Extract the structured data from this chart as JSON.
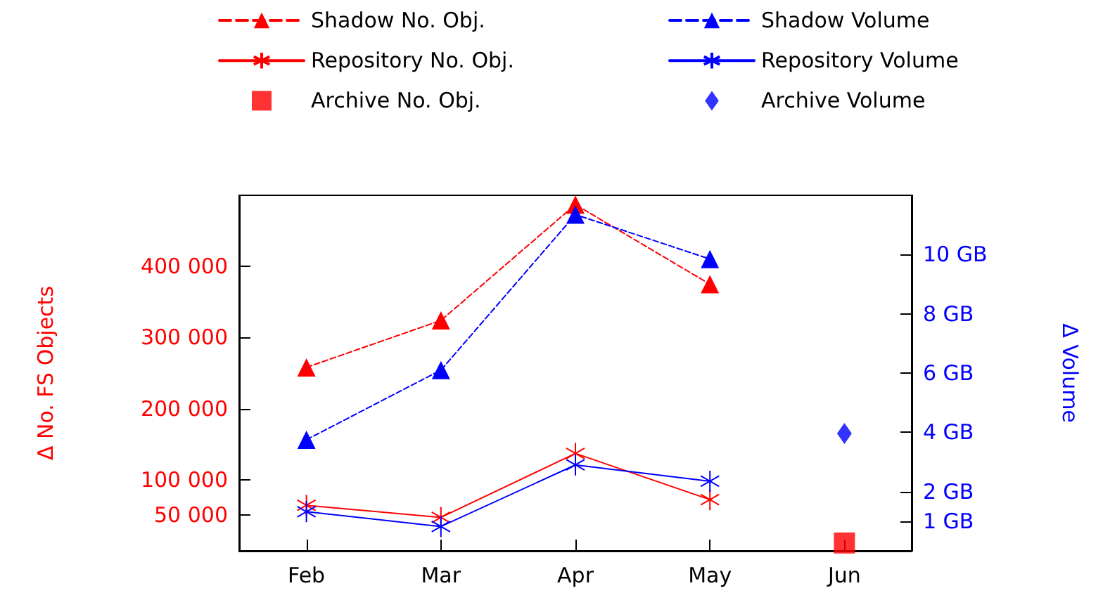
{
  "chart_data": {
    "type": "line",
    "ylabel": "Δ No. FS Objects",
    "y2label": "Δ Volume",
    "categories": [
      "Feb",
      "Mar",
      "Apr",
      "May",
      "Jun"
    ],
    "series": [
      {
        "name": "Shadow No. Obj.",
        "color": "#ff0000",
        "line_style": "dashed",
        "marker": "triangle",
        "values": [
          258000,
          324000,
          487000,
          375000,
          null
        ]
      },
      {
        "name": "Repository No. Obj.",
        "color": "#ff0000",
        "line_style": "solid",
        "marker": "cross",
        "values": [
          64000,
          47000,
          137000,
          72000,
          null
        ]
      },
      {
        "name": "Archive No. Obj.",
        "type": "scatter",
        "color": "#ff0000",
        "marker": "square",
        "values": [
          null,
          null,
          null,
          null,
          11000
        ]
      },
      {
        "name": "Shadow Volume",
        "axis": "y2",
        "color": "#0000ff",
        "line_style": "dashed",
        "marker": "triangle",
        "values": [
          3.75,
          6.1,
          11.35,
          9.85,
          null
        ]
      },
      {
        "name": "Repository Volume",
        "axis": "y2",
        "color": "#0000ff",
        "line_style": "solid",
        "marker": "cross",
        "values": [
          1.32,
          0.82,
          2.9,
          2.35,
          null
        ]
      },
      {
        "name": "Archive Volume",
        "type": "scatter",
        "axis": "y2",
        "color": "#0000ff",
        "marker": "diamond",
        "values": [
          null,
          null,
          null,
          null,
          3.96
        ]
      }
    ],
    "ylim": [
      0,
      500000
    ],
    "yticks": [
      {
        "value": 50000,
        "label": "50 000"
      },
      {
        "value": 100000,
        "label": "100 000"
      },
      {
        "value": 200000,
        "label": "200 000"
      },
      {
        "value": 300000,
        "label": "300 000"
      },
      {
        "value": 400000,
        "label": "400 000"
      }
    ],
    "y2lim": [
      0,
      12
    ],
    "y2ticks": [
      {
        "value": 1,
        "label": "1 GB"
      },
      {
        "value": 2,
        "label": "2 GB"
      },
      {
        "value": 4,
        "label": "4 GB"
      },
      {
        "value": 6,
        "label": "6 GB"
      },
      {
        "value": 8,
        "label": "8 GB"
      },
      {
        "value": 10,
        "label": "10 GB"
      }
    ],
    "grid": false,
    "legend": "top"
  }
}
